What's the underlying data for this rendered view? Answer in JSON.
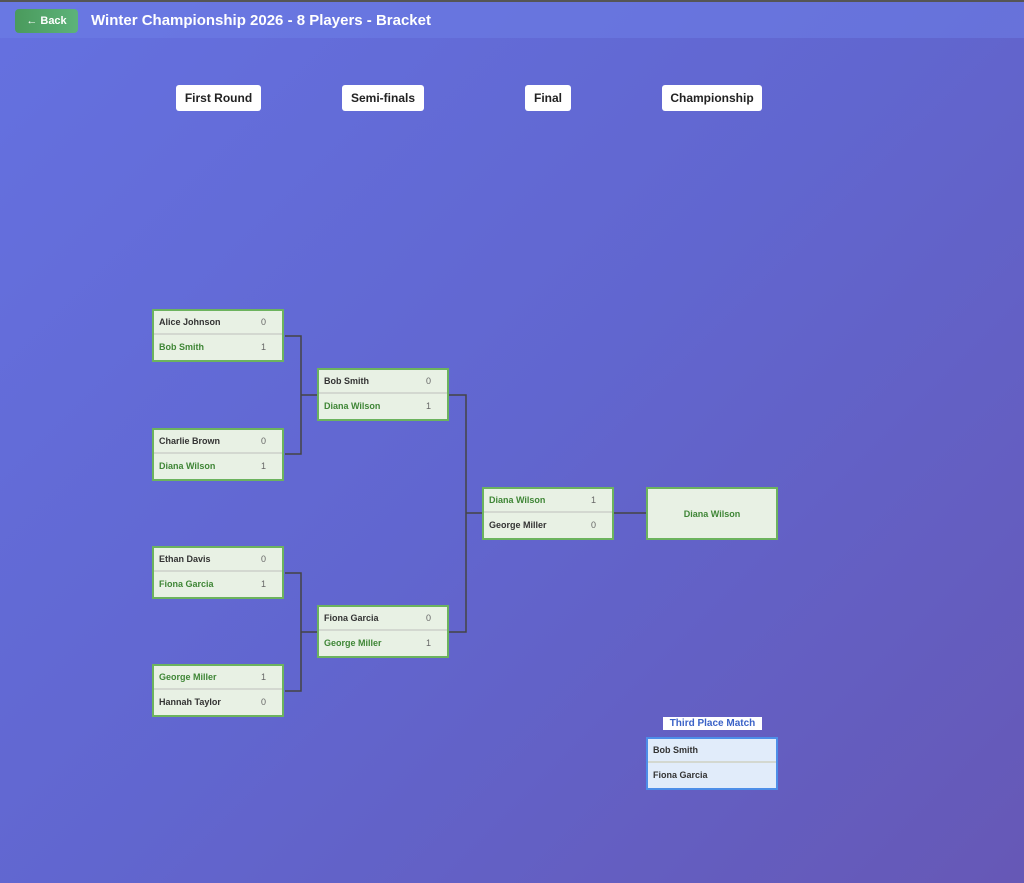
{
  "header": {
    "back_label": "← Back",
    "title": "Winter Championship 2026 - 8 Players - Bracket"
  },
  "rounds": [
    "First Round",
    "Semi-finals",
    "Final",
    "Championship"
  ],
  "first_round": [
    {
      "p1": "Alice Johnson",
      "s1": "0",
      "p2": "Bob Smith",
      "s2": "1",
      "winner": 2
    },
    {
      "p1": "Charlie Brown",
      "s1": "0",
      "p2": "Diana Wilson",
      "s2": "1",
      "winner": 2
    },
    {
      "p1": "Ethan Davis",
      "s1": "0",
      "p2": "Fiona Garcia",
      "s2": "1",
      "winner": 2
    },
    {
      "p1": "George Miller",
      "s1": "1",
      "p2": "Hannah Taylor",
      "s2": "0",
      "winner": 1
    }
  ],
  "semi_finals": [
    {
      "p1": "Bob Smith",
      "s1": "0",
      "p2": "Diana Wilson",
      "s2": "1",
      "winner": 2
    },
    {
      "p1": "Fiona Garcia",
      "s1": "0",
      "p2": "George Miller",
      "s2": "1",
      "winner": 2
    }
  ],
  "final": [
    {
      "p1": "Diana Wilson",
      "s1": "1",
      "p2": "George Miller",
      "s2": "0",
      "winner": 1
    }
  ],
  "champion": "Diana Wilson",
  "third_place": {
    "label": "Third Place Match",
    "p1": "Bob Smith",
    "p2": "Fiona Garcia"
  },
  "colors": {
    "winner": "#3f8636",
    "match_border": "#6cb35e",
    "third_border": "#4d8ee8",
    "back_button": "#4fa66a"
  }
}
